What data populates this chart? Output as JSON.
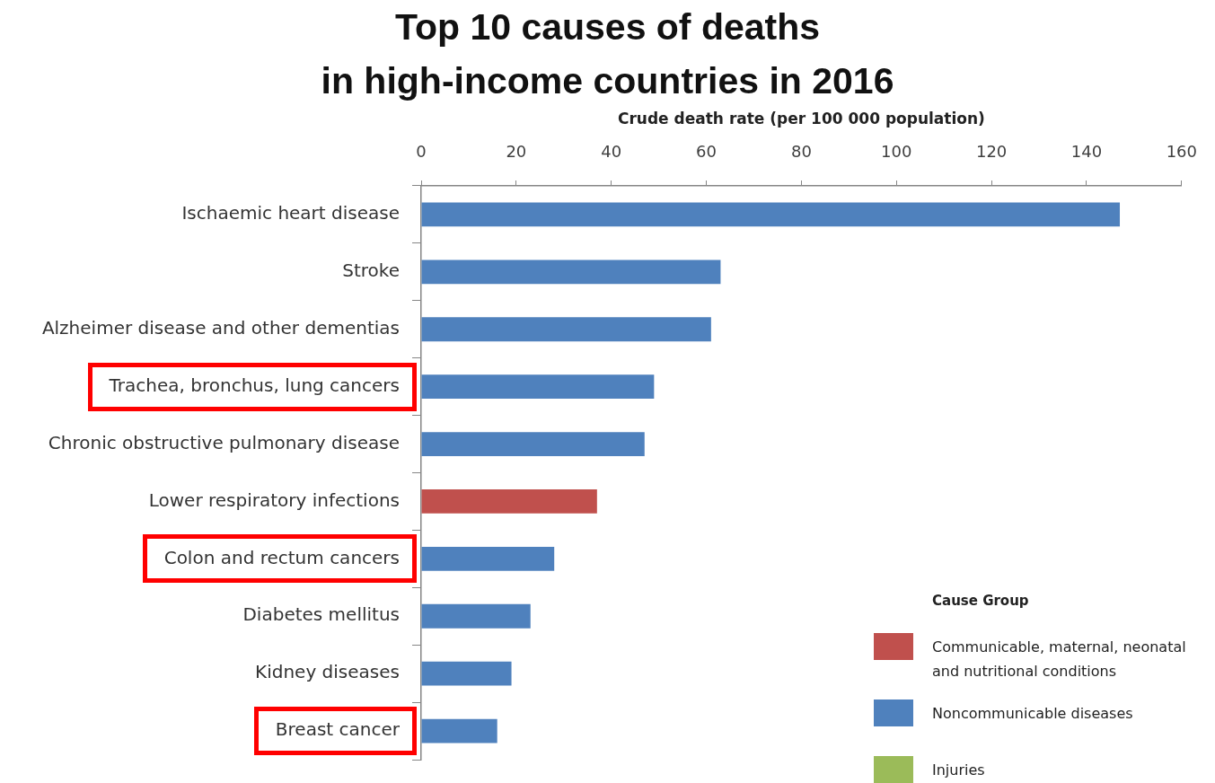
{
  "chart_data": {
    "type": "bar",
    "orientation": "horizontal",
    "stacked": true,
    "title": "Top 10 causes of deaths\nin high-income countries in 2016",
    "xlabel": "Crude death rate (per 100 000 population)",
    "categories": [
      "Ischaemic heart disease",
      "Stroke",
      "Alzheimer disease and other dementias",
      "Trachea, bronchus, lung cancers",
      "Chronic obstructive pulmonary disease",
      "Lower respiratory infections",
      "Colon and rectum cancers",
      "Diabetes mellitus",
      "Kidney diseases",
      "Breast cancer"
    ],
    "series": [
      {
        "name": "Communicable, maternal, neonatal and nutritional conditions",
        "color": "#c0504d",
        "values": [
          null,
          null,
          null,
          null,
          null,
          37,
          null,
          null,
          null,
          null
        ]
      },
      {
        "name": "Noncommunicable diseases",
        "color": "#4f81bd",
        "values": [
          147,
          63,
          61,
          49,
          47,
          null,
          28,
          23,
          19,
          16
        ]
      },
      {
        "name": "Injuries",
        "color": "#9bbb59",
        "values": [
          null,
          null,
          null,
          null,
          null,
          null,
          null,
          null,
          null,
          null
        ]
      }
    ],
    "xlim": [
      0,
      160
    ],
    "xticks": [
      0,
      20,
      40,
      60,
      80,
      100,
      120,
      140,
      160
    ],
    "legend": "bottom right",
    "legend_title": "Cause Group"
  }
}
